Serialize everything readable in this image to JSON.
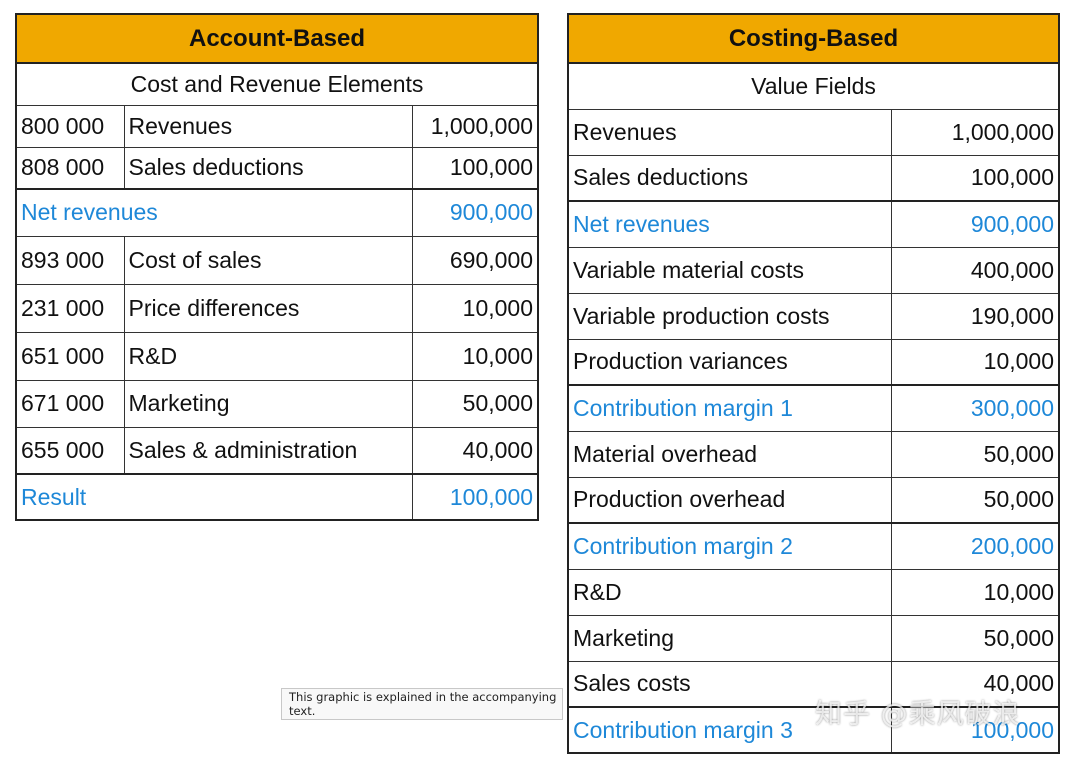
{
  "account_based": {
    "title": "Account-Based",
    "subtitle": "Cost and Revenue Elements",
    "rows": [
      {
        "code": "800 000",
        "label": "Revenues",
        "value": "1,000,000"
      },
      {
        "code": "808 000",
        "label": "Sales deductions",
        "value": "100,000"
      },
      {
        "label": "Net revenues",
        "value": "900,000",
        "highlight": true
      },
      {
        "code": "893 000",
        "label": "Cost of sales",
        "value": "690,000"
      },
      {
        "code": "231 000",
        "label": "Price differences",
        "value": "10,000"
      },
      {
        "code": "651 000",
        "label": "R&D",
        "value": "10,000"
      },
      {
        "code": "671 000",
        "label": "Marketing",
        "value": "50,000"
      },
      {
        "code": "655 000",
        "label": "Sales & administration",
        "value": "40,000"
      },
      {
        "label": "Result",
        "value": "100,000",
        "highlight": true
      }
    ]
  },
  "costing_based": {
    "title": "Costing-Based",
    "subtitle": "Value Fields",
    "rows": [
      {
        "label": "Revenues",
        "value": "1,000,000"
      },
      {
        "label": "Sales deductions",
        "value": "100,000"
      },
      {
        "label": "Net revenues",
        "value": "900,000",
        "highlight": true
      },
      {
        "label": "Variable material costs",
        "value": "400,000"
      },
      {
        "label": "Variable production costs",
        "value": "190,000"
      },
      {
        "label": "Production variances",
        "value": "10,000"
      },
      {
        "label": "Contribution margin 1",
        "value": "300,000",
        "highlight": true
      },
      {
        "label": "Material overhead",
        "value": "50,000"
      },
      {
        "label": "Production overhead",
        "value": "50,000"
      },
      {
        "label": "Contribution margin 2",
        "value": "200,000",
        "highlight": true
      },
      {
        "label": "R&D",
        "value": "10,000"
      },
      {
        "label": "Marketing",
        "value": "50,000"
      },
      {
        "label": "Sales costs",
        "value": "40,000"
      },
      {
        "label": "Contribution margin 3",
        "value": "100,000",
        "highlight": true
      }
    ]
  },
  "tooltip": "This graphic is explained in the accompanying text.",
  "watermark": "知乎 @乘风破浪",
  "colors": {
    "header": "#f0a800",
    "highlight_text": "#1e88d8",
    "border": "#222222"
  }
}
